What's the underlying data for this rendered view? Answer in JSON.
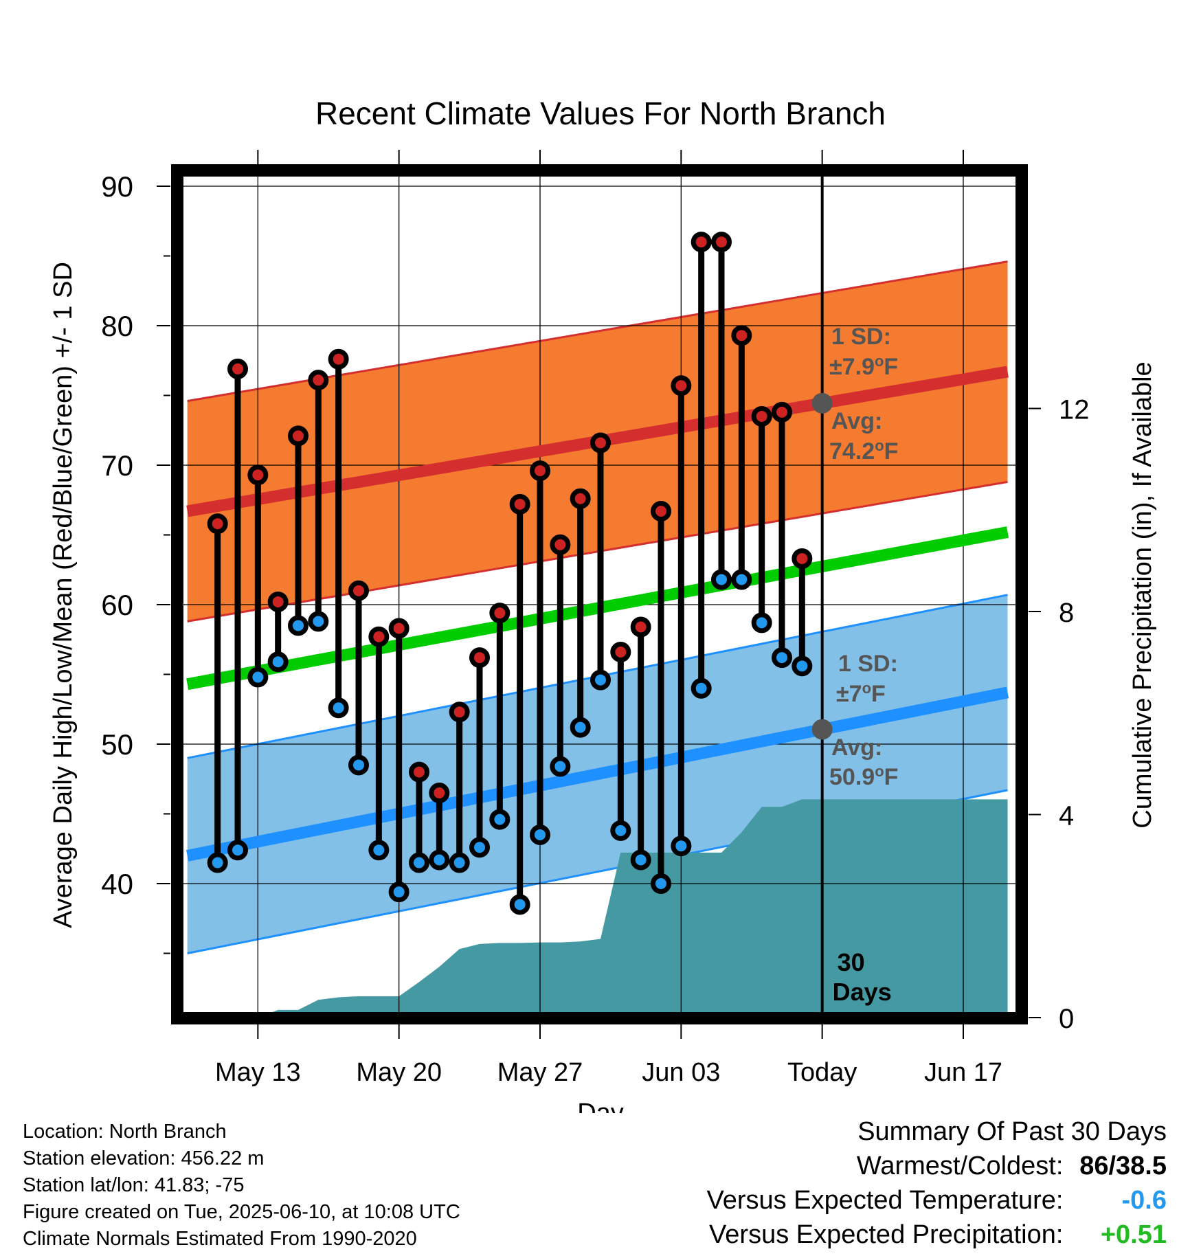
{
  "chart_data": {
    "type": "line",
    "title": "Recent Climate Values For North Branch",
    "xlabel": "Day",
    "ylabel": "Average Daily High/Low/Mean (Red/Blue/Green) +/- 1 SD",
    "y2label": "Cumulative Precipitation (in), If Available",
    "x_ticks": [
      "May 13",
      "May 20",
      "May 27",
      "Jun 03",
      "Today",
      "Jun 17"
    ],
    "x_tick_days": [
      3,
      10,
      17,
      24,
      31,
      38
    ],
    "x_range_days": [
      -0.5,
      40.2
    ],
    "ylim": [
      30.5,
      91.5
    ],
    "y_ticks": [
      40,
      50,
      60,
      70,
      80,
      90
    ],
    "y2lim": [
      0,
      24.3
    ],
    "y2_ticks": [
      0,
      4,
      8,
      12
    ],
    "grid": true,
    "today_day": 31,
    "today_label": "30 Days",
    "normal_high": {
      "start": 66.7,
      "end": 76.7,
      "sd": "±7.9",
      "avg": "74.2",
      "sd_label": "1 SD:",
      "avg_label": "Avg:",
      "unit": "F",
      "degree": "o"
    },
    "normal_low": {
      "start": 42.0,
      "end": 53.7,
      "sd": "±7",
      "avg": "50.9",
      "sd_label": "1 SD:",
      "avg_label": "Avg:",
      "unit": "F",
      "degree": "o"
    },
    "normal_high_sd_value": 7.9,
    "normal_low_sd_value": 7,
    "normal_mean": {
      "start": 54.3,
      "end": 65.2
    },
    "daily": [
      {
        "day": 1,
        "high": 65.8,
        "low": 41.5
      },
      {
        "day": 2,
        "high": 76.9,
        "low": 42.4
      },
      {
        "day": 3,
        "high": 69.3,
        "low": 54.8
      },
      {
        "day": 4,
        "high": 60.2,
        "low": 55.9
      },
      {
        "day": 5,
        "high": 72.1,
        "low": 58.5
      },
      {
        "day": 6,
        "high": 76.1,
        "low": 58.8
      },
      {
        "day": 7,
        "high": 77.6,
        "low": 52.6
      },
      {
        "day": 8,
        "high": 61.0,
        "low": 48.5
      },
      {
        "day": 9,
        "high": 57.7,
        "low": 42.4
      },
      {
        "day": 10,
        "high": 58.3,
        "low": 39.4
      },
      {
        "day": 11,
        "high": 48.0,
        "low": 41.5
      },
      {
        "day": 12,
        "high": 46.5,
        "low": 41.7
      },
      {
        "day": 13,
        "high": 52.3,
        "low": 41.5
      },
      {
        "day": 14,
        "high": 56.2,
        "low": 42.6
      },
      {
        "day": 15,
        "high": 59.4,
        "low": 44.6
      },
      {
        "day": 16,
        "high": 67.2,
        "low": 38.5
      },
      {
        "day": 17,
        "high": 69.6,
        "low": 43.5
      },
      {
        "day": 18,
        "high": 64.3,
        "low": 48.4
      },
      {
        "day": 19,
        "high": 67.6,
        "low": 51.2
      },
      {
        "day": 20,
        "high": 71.6,
        "low": 54.6
      },
      {
        "day": 21,
        "high": 56.6,
        "low": 43.8
      },
      {
        "day": 22,
        "high": 58.4,
        "low": 41.7
      },
      {
        "day": 23,
        "high": 66.7,
        "low": 40.0
      },
      {
        "day": 24,
        "high": 75.7,
        "low": 42.7
      },
      {
        "day": 25,
        "high": 86.0,
        "low": 54.0
      },
      {
        "day": 26,
        "high": 86.0,
        "low": 61.8
      },
      {
        "day": 27,
        "high": 79.3,
        "low": 61.8
      },
      {
        "day": 28,
        "high": 73.5,
        "low": 58.7
      },
      {
        "day": 29,
        "high": 73.8,
        "low": 56.2
      },
      {
        "day": 30,
        "high": 63.3,
        "low": 55.6
      }
    ],
    "precip_cumulative": [
      {
        "day": 0,
        "value": 0
      },
      {
        "day": 0.5,
        "value": 0
      },
      {
        "day": 1,
        "value": 0
      },
      {
        "day": 3,
        "value": 0
      },
      {
        "day": 4,
        "value": 0.15
      },
      {
        "day": 5,
        "value": 0.15
      },
      {
        "day": 6,
        "value": 0.35
      },
      {
        "day": 7,
        "value": 0.4
      },
      {
        "day": 8,
        "value": 0.42
      },
      {
        "day": 9,
        "value": 0.42
      },
      {
        "day": 10,
        "value": 0.42
      },
      {
        "day": 11,
        "value": 0.7
      },
      {
        "day": 12,
        "value": 1.0
      },
      {
        "day": 13,
        "value": 1.35
      },
      {
        "day": 14,
        "value": 1.45
      },
      {
        "day": 15,
        "value": 1.47
      },
      {
        "day": 16,
        "value": 1.47
      },
      {
        "day": 17,
        "value": 1.48
      },
      {
        "day": 18,
        "value": 1.48
      },
      {
        "day": 19,
        "value": 1.5
      },
      {
        "day": 20,
        "value": 1.55
      },
      {
        "day": 21,
        "value": 3.25
      },
      {
        "day": 22,
        "value": 3.25
      },
      {
        "day": 23,
        "value": 3.25
      },
      {
        "day": 24,
        "value": 3.25
      },
      {
        "day": 25,
        "value": 3.25
      },
      {
        "day": 26,
        "value": 3.25
      },
      {
        "day": 27,
        "value": 3.65
      },
      {
        "day": 28,
        "value": 4.15
      },
      {
        "day": 29,
        "value": 4.15
      },
      {
        "day": 30,
        "value": 4.3
      },
      {
        "day": 31,
        "value": 4.3
      },
      {
        "day": 40.2,
        "value": 4.3
      }
    ],
    "colors": {
      "high_band": "#f47b30",
      "high_line": "#d42e2e",
      "low_band": "#82c0e8",
      "low_line": "#1e90ff",
      "mean_line": "#00cc00",
      "precip": "#4499a2",
      "high_dot": "#cc2222",
      "low_dot": "#2299ee",
      "avg_dot": "#555555",
      "annotation_text": "#555555"
    }
  },
  "info": {
    "location": "Location: North Branch",
    "elevation": "Station elevation: 456.22 m",
    "latlon": "Station lat/lon: 41.83; -75",
    "created": "Figure created on Tue, 2025-06-10, at 10:08 UTC",
    "normals": "Climate Normals Estimated From 1990-2020"
  },
  "summary": {
    "title": "Summary Of Past 30 Days",
    "warm_cold_label": "Warmest/Coldest:",
    "warm_cold_value": "86/38.5",
    "temp_label": "Versus Expected Temperature:",
    "temp_value": "-0.6",
    "temp_color": "#2299ee",
    "precip_label": "Versus Expected Precipitation:",
    "precip_value": "+0.51",
    "precip_color": "#22bb22"
  }
}
